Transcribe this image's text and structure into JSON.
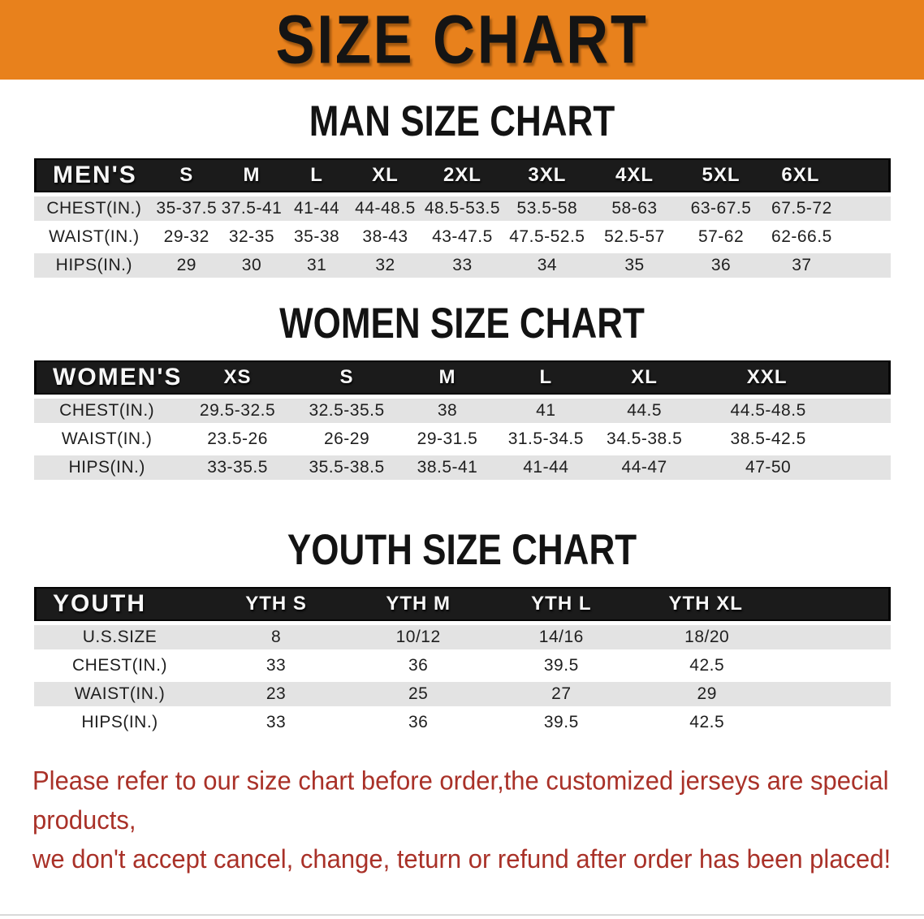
{
  "banner": {
    "title": "SIZE CHART"
  },
  "colors": {
    "banner-bg": "#E8811C",
    "header-bar": "#1B1B1B",
    "row-shade": "#E3E3E3",
    "note-red": "#A93128"
  },
  "sections": [
    {
      "heading": "MAN SIZE CHART",
      "table": {
        "header": [
          "MEN'S",
          "S",
          "M",
          "L",
          "XL",
          "2XL",
          "3XL",
          "4XL",
          "5XL",
          "6XL"
        ],
        "rows": [
          [
            "CHEST(IN.)",
            "35-37.5",
            "37.5-41",
            "41-44",
            "44-48.5",
            "48.5-53.5",
            "53.5-58",
            "58-63",
            "63-67.5",
            "67.5-72"
          ],
          [
            "WAIST(IN.)",
            "29-32",
            "32-35",
            "35-38",
            "38-43",
            "43-47.5",
            "47.5-52.5",
            "52.5-57",
            "57-62",
            "62-66.5"
          ],
          [
            "HIPS(IN.)",
            "29",
            "30",
            "31",
            "32",
            "33",
            "34",
            "35",
            "36",
            "37"
          ]
        ]
      }
    },
    {
      "heading": "WOMEN SIZE CHART",
      "table": {
        "header": [
          "WOMEN'S",
          "XS",
          "S",
          "M",
          "L",
          "XL",
          "XXL"
        ],
        "rows": [
          [
            "CHEST(IN.)",
            "29.5-32.5",
            "32.5-35.5",
            "38",
            "41",
            "44.5",
            "44.5-48.5"
          ],
          [
            "WAIST(IN.)",
            "23.5-26",
            "26-29",
            "29-31.5",
            "31.5-34.5",
            "34.5-38.5",
            "38.5-42.5"
          ],
          [
            "HIPS(IN.)",
            "33-35.5",
            "35.5-38.5",
            "38.5-41",
            "41-44",
            "44-47",
            "47-50"
          ]
        ]
      }
    },
    {
      "heading": "YOUTH SIZE CHART",
      "table": {
        "header": [
          "YOUTH",
          "YTH S",
          "YTH M",
          "YTH L",
          "YTH XL"
        ],
        "rows": [
          [
            "U.S.SIZE",
            "8",
            "10/12",
            "14/16",
            "18/20"
          ],
          [
            "CHEST(IN.)",
            "33",
            "36",
            "39.5",
            "42.5"
          ],
          [
            "WAIST(IN.)",
            "23",
            "25",
            "27",
            "29"
          ],
          [
            "HIPS(IN.)",
            "33",
            "36",
            "39.5",
            "42.5"
          ]
        ]
      }
    }
  ],
  "footer_note": {
    "line1": "Please refer to our size chart before order,the customized jerseys are special products,",
    "line2": "we don't accept cancel, change, teturn or refund after order has been placed!"
  }
}
